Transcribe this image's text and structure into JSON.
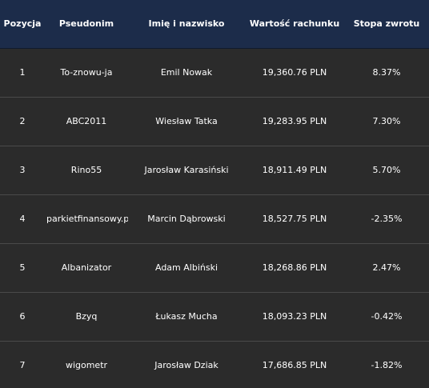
{
  "table": {
    "headers": [
      "Pozycja",
      "Pseudonim",
      "Imię i nazwisko",
      "Wartość rachunku",
      "Stopa zwrotu"
    ],
    "rows": [
      [
        "1",
        "To-znowu-ja",
        "Emil Nowak",
        "19,360.76 PLN",
        "8.37%"
      ],
      [
        "2",
        "ABC2011",
        "Wiesław Tatka",
        "19,283.95 PLN",
        "7.30%"
      ],
      [
        "3",
        "Rino55",
        "Jarosław Karasiński",
        "18,911.49 PLN",
        "5.70%"
      ],
      [
        "4",
        "parkietfinansowy.pl",
        "Marcin Dąbrowski",
        "18,527.75 PLN",
        "-2.35%"
      ],
      [
        "5",
        "Albanizator",
        "Adam Albiński",
        "18,268.86 PLN",
        "2.47%"
      ],
      [
        "6",
        "Bzyq",
        "Łukasz Mucha",
        "18,093.23 PLN",
        "-0.42%"
      ],
      [
        "7",
        "wigometr",
        "Jarosław Dziak",
        "17,686.85 PLN",
        "-1.82%"
      ]
    ]
  },
  "colors": {
    "header_bg": "#1c2c4a",
    "row_bg": "#2b2b2b",
    "divider": "#4a4a4a",
    "text": "#ffffff"
  }
}
